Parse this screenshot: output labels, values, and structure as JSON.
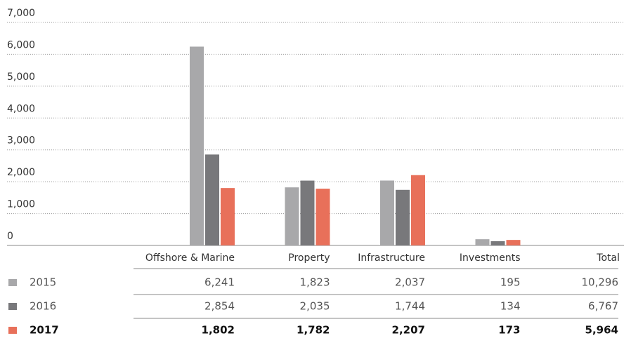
{
  "chart_data": {
    "type": "bar",
    "categories": [
      "Offshore & Marine",
      "Property",
      "Infrastructure",
      "Investments"
    ],
    "total_header": "Total",
    "series": [
      {
        "name": "2015",
        "color": "#a8a8aa",
        "bold": false,
        "values": [
          6241,
          1823,
          2037,
          195
        ],
        "value_labels": [
          "6,241",
          "1,823",
          "2,037",
          "195"
        ],
        "total": 10296,
        "total_label": "10,296"
      },
      {
        "name": "2016",
        "color": "#78787b",
        "bold": false,
        "values": [
          2854,
          2035,
          1744,
          134
        ],
        "value_labels": [
          "2,854",
          "2,035",
          "1,744",
          "134"
        ],
        "total": 6767,
        "total_label": "6,767"
      },
      {
        "name": "2017",
        "color": "#e8705a",
        "bold": true,
        "values": [
          1802,
          1782,
          2207,
          173
        ],
        "value_labels": [
          "1,802",
          "1,782",
          "2,207",
          "173"
        ],
        "total": 5964,
        "total_label": "5,964"
      }
    ],
    "ylim": [
      0,
      7000
    ],
    "yticks": [
      0,
      {
        "value": 1000,
        "label": "1,000"
      },
      {
        "value": 2000,
        "label": "2,000"
      },
      {
        "value": 3000,
        "label": "3,000"
      },
      {
        "value": 4000,
        "label": "4,000"
      },
      {
        "value": 5000,
        "label": "5,000"
      },
      {
        "value": 6000,
        "label": "6,000"
      },
      {
        "value": 7000,
        "label": "7,000"
      }
    ],
    "grid": true
  }
}
